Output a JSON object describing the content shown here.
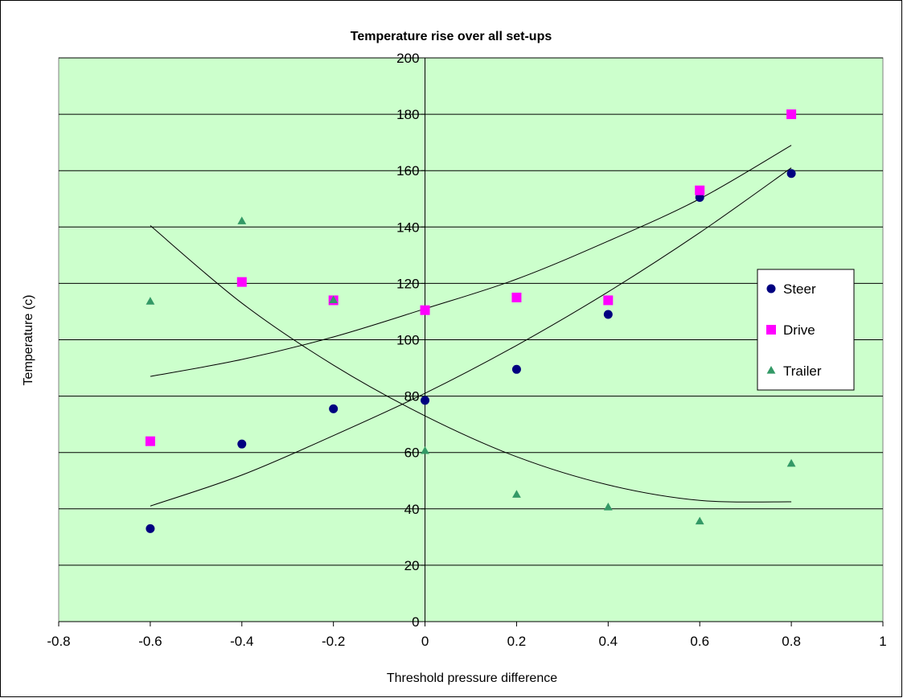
{
  "chart_data": {
    "type": "scatter",
    "title": "Temperature rise over all set-ups",
    "xlabel": "Threshold pressure difference",
    "ylabel": "Temperature (c)",
    "xlim": [
      -0.8,
      1
    ],
    "ylim": [
      0,
      200
    ],
    "xticks": [
      -0.8,
      -0.6,
      -0.4,
      -0.2,
      0,
      0.2,
      0.4,
      0.6,
      0.8,
      1
    ],
    "xtick_labels": [
      "-0.8",
      "-0.6",
      "-0.4",
      "-0.2",
      "0",
      "0.2",
      "0.4",
      "0.6",
      "0.8",
      "1"
    ],
    "yticks": [
      0,
      20,
      40,
      60,
      80,
      100,
      120,
      140,
      160,
      180,
      200
    ],
    "ytick_labels": [
      "0",
      "20",
      "40",
      "60",
      "80",
      "100",
      "120",
      "140",
      "160",
      "180",
      "200"
    ],
    "grid": "horizontal",
    "legend_position": "right",
    "plot_background": "#ccffcc",
    "series": [
      {
        "name": "Steer",
        "marker": "circle",
        "color": "#000080",
        "x": [
          -0.6,
          -0.4,
          -0.2,
          0,
          0.2,
          0.4,
          0.6,
          0.8
        ],
        "y": [
          33,
          63,
          75.5,
          78.5,
          89.5,
          109,
          150.5,
          159
        ]
      },
      {
        "name": "Drive",
        "marker": "square",
        "color": "#ff00ff",
        "x": [
          -0.6,
          -0.4,
          -0.2,
          0,
          0.2,
          0.4,
          0.6,
          0.8
        ],
        "y": [
          64,
          120.5,
          114,
          110.5,
          115,
          114,
          153,
          180
        ]
      },
      {
        "name": "Trailer",
        "marker": "triangle",
        "color": "#339966",
        "x": [
          -0.6,
          -0.4,
          -0.2,
          0,
          0.2,
          0.4,
          0.6,
          0.8
        ],
        "y": [
          113.5,
          142,
          114,
          60.5,
          45,
          40.5,
          35.5,
          56
        ]
      }
    ],
    "trendlines": [
      {
        "series": "Steer",
        "x": [
          -0.6,
          -0.4,
          -0.2,
          0,
          0.2,
          0.4,
          0.6,
          0.8
        ],
        "y": [
          41,
          52,
          66,
          81,
          98,
          117,
          138,
          161
        ]
      },
      {
        "series": "Drive",
        "x": [
          -0.6,
          -0.4,
          -0.2,
          0,
          0.2,
          0.4,
          0.6,
          0.8
        ],
        "y": [
          87,
          93,
          101,
          111,
          121.5,
          135,
          150,
          169
        ]
      },
      {
        "series": "Trailer",
        "x": [
          -0.6,
          -0.4,
          -0.2,
          0,
          0.2,
          0.4,
          0.6,
          0.8
        ],
        "y": [
          140.5,
          113,
          91,
          73,
          58.5,
          48.5,
          43,
          42.5
        ]
      }
    ]
  }
}
